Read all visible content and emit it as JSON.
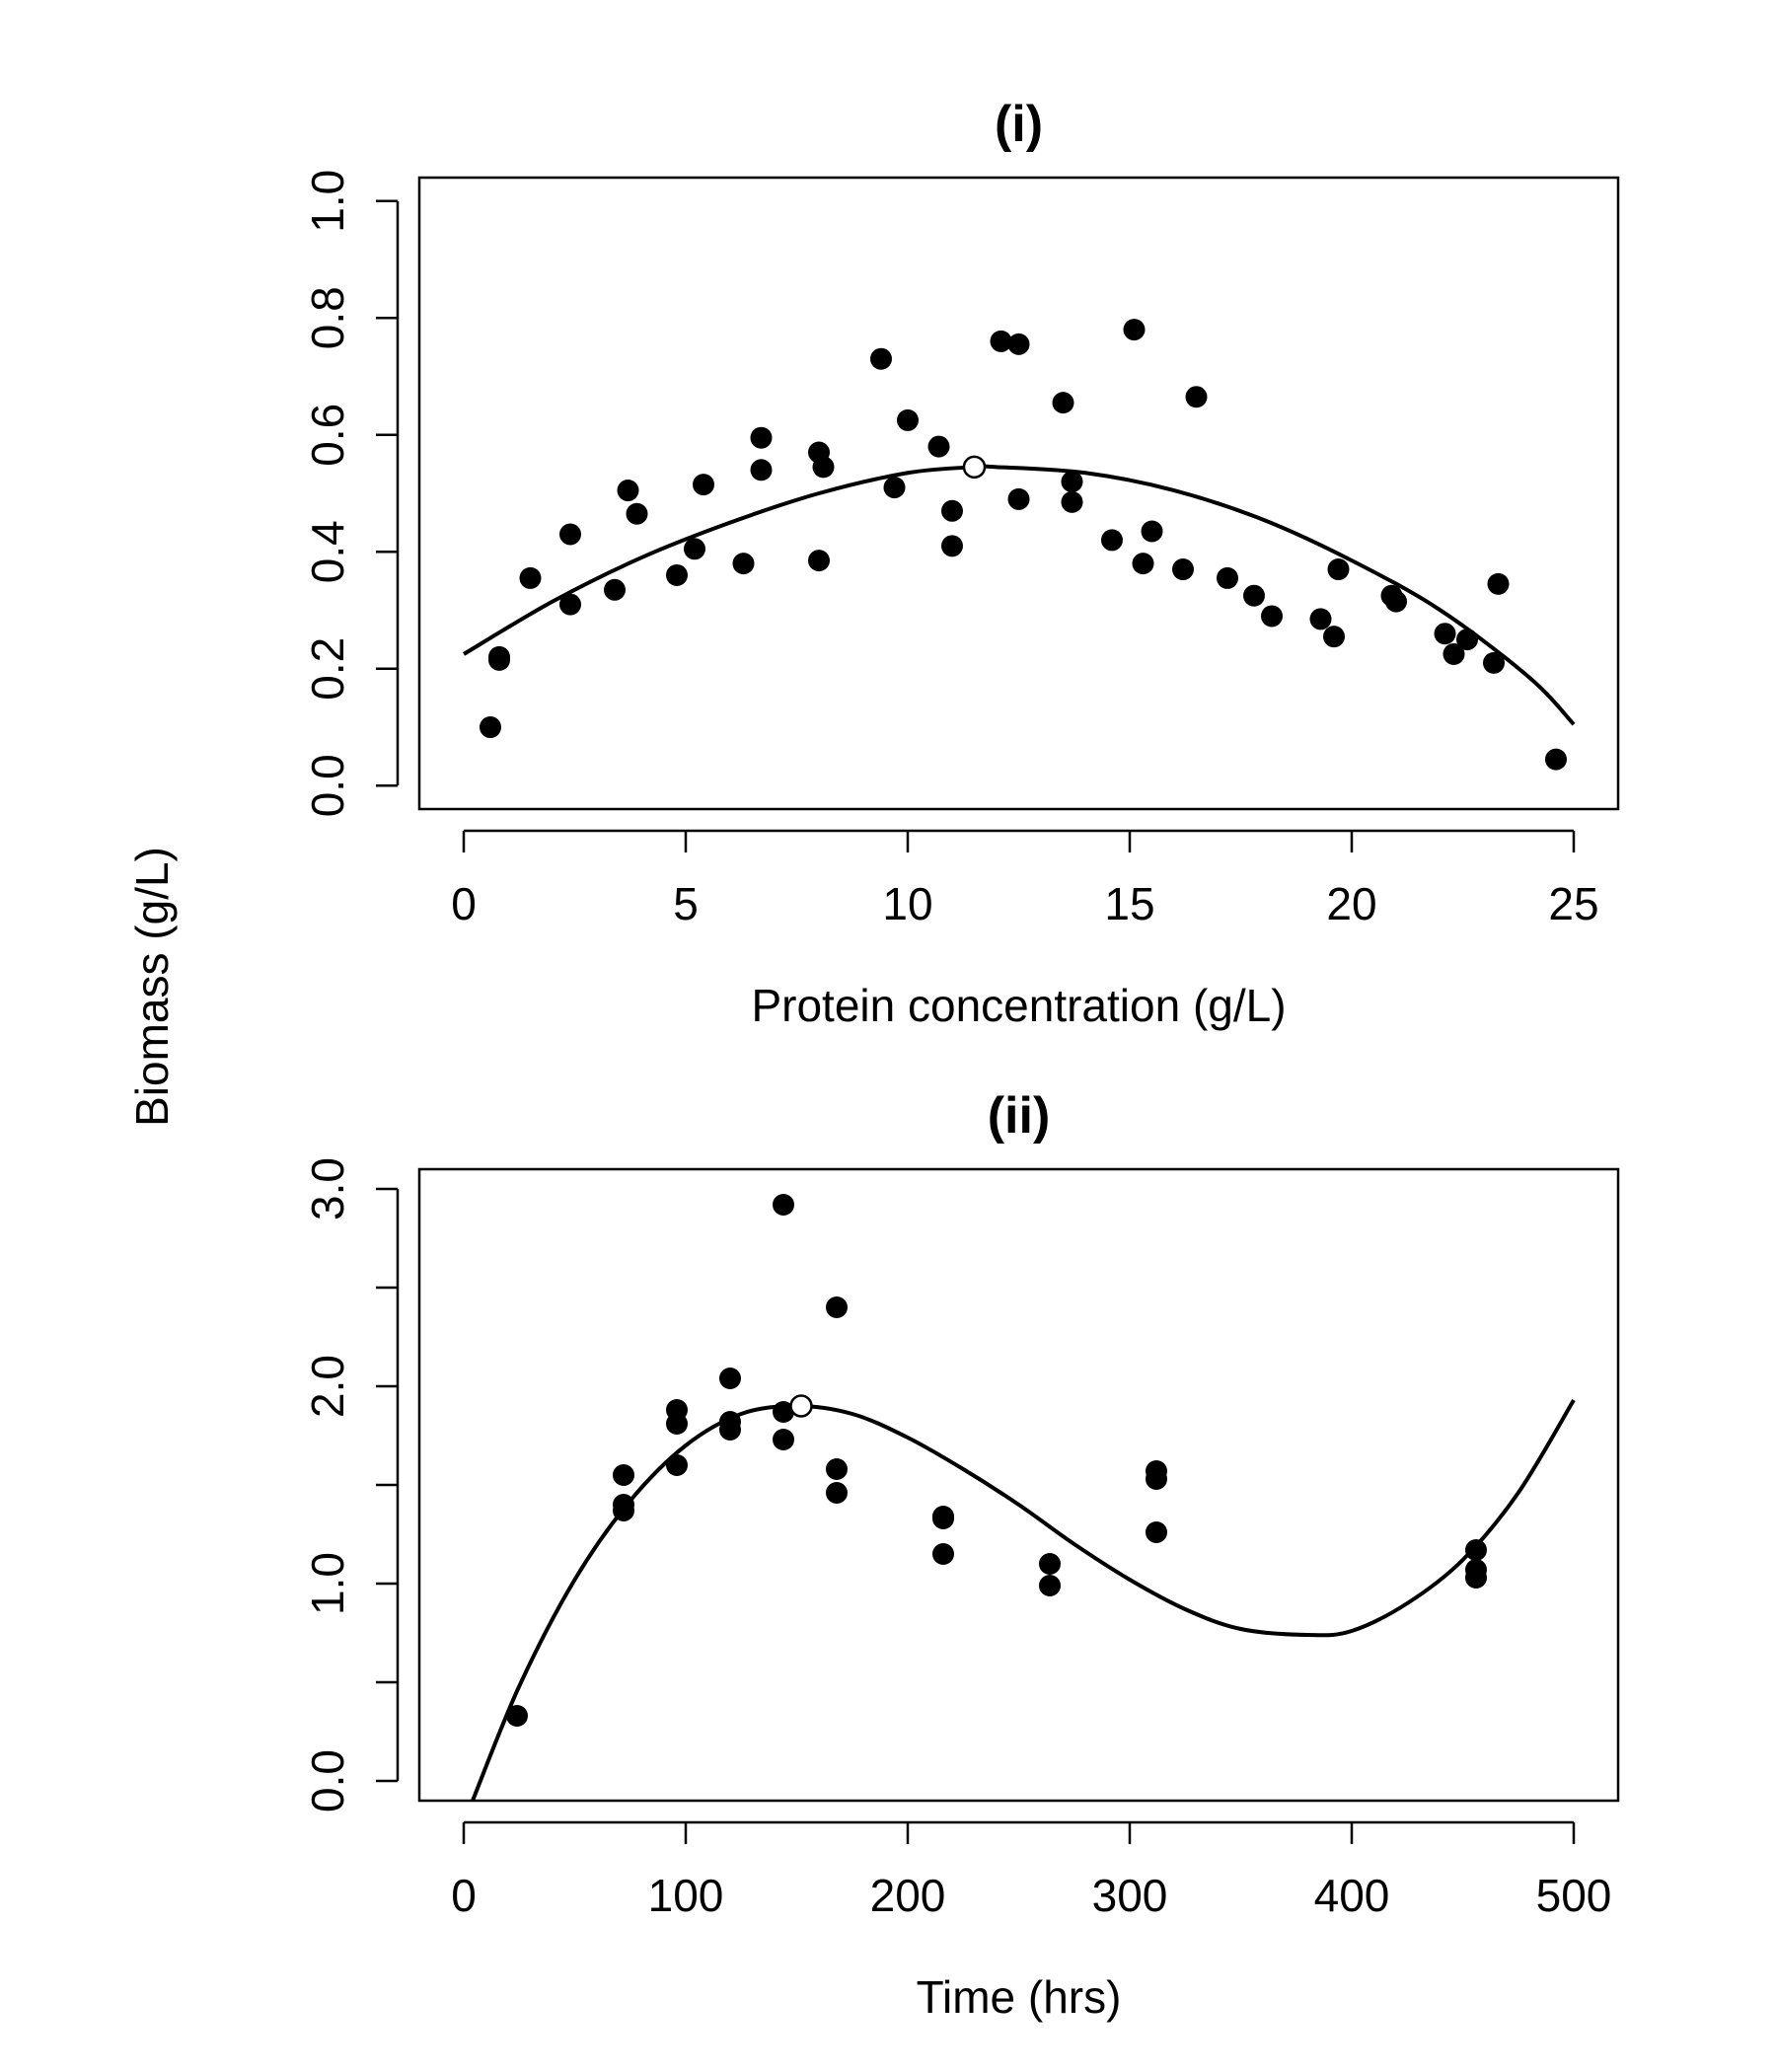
{
  "figure": {
    "shared_ylabel": "Biomass (g/L)"
  },
  "chart_data": [
    {
      "type": "scatter",
      "title": "(i)",
      "xlabel": "Protein concentration (g/L)",
      "ylabel": "Biomass (g/L)",
      "xlim": [
        -1,
        26
      ],
      "ylim": [
        -0.04,
        1.04
      ],
      "xticks": [
        0,
        5,
        10,
        15,
        20,
        25
      ],
      "xtick_labels": [
        "0",
        "5",
        "10",
        "15",
        "20",
        "25"
      ],
      "yticks": [
        0.0,
        0.2,
        0.4,
        0.6,
        0.8,
        1.0
      ],
      "ytick_labels": [
        "0.0",
        "0.2",
        "0.4",
        "0.6",
        "0.8",
        "1.0"
      ],
      "grid": false,
      "points": [
        [
          0.6,
          0.1
        ],
        [
          0.8,
          0.22
        ],
        [
          0.8,
          0.215
        ],
        [
          1.5,
          0.355
        ],
        [
          2.4,
          0.43
        ],
        [
          2.4,
          0.31
        ],
        [
          3.4,
          0.335
        ],
        [
          3.7,
          0.505
        ],
        [
          3.9,
          0.465
        ],
        [
          4.8,
          0.36
        ],
        [
          5.2,
          0.405
        ],
        [
          5.4,
          0.515
        ],
        [
          6.3,
          0.38
        ],
        [
          6.7,
          0.595
        ],
        [
          6.7,
          0.54
        ],
        [
          8.0,
          0.385
        ],
        [
          8.0,
          0.57
        ],
        [
          8.1,
          0.545
        ],
        [
          9.4,
          0.73
        ],
        [
          9.7,
          0.51
        ],
        [
          10.0,
          0.625
        ],
        [
          10.7,
          0.58
        ],
        [
          11.0,
          0.47
        ],
        [
          11.0,
          0.41
        ],
        [
          12.1,
          0.76
        ],
        [
          12.5,
          0.755
        ],
        [
          12.5,
          0.49
        ],
        [
          13.5,
          0.655
        ],
        [
          13.7,
          0.52
        ],
        [
          13.7,
          0.485
        ],
        [
          14.6,
          0.42
        ],
        [
          15.1,
          0.78
        ],
        [
          15.3,
          0.38
        ],
        [
          15.5,
          0.435
        ],
        [
          16.2,
          0.37
        ],
        [
          16.5,
          0.665
        ],
        [
          17.2,
          0.355
        ],
        [
          17.8,
          0.325
        ],
        [
          18.2,
          0.29
        ],
        [
          19.3,
          0.285
        ],
        [
          19.6,
          0.255
        ],
        [
          19.7,
          0.37
        ],
        [
          20.9,
          0.325
        ],
        [
          21.0,
          0.315
        ],
        [
          22.1,
          0.26
        ],
        [
          22.3,
          0.225
        ],
        [
          22.6,
          0.25
        ],
        [
          23.2,
          0.21
        ],
        [
          23.3,
          0.345
        ],
        [
          24.6,
          0.045
        ]
      ],
      "fit_curve": {
        "type": "quadratic",
        "x": [
          0,
          2,
          4,
          6,
          8,
          10,
          11.5,
          12,
          14,
          16,
          18,
          20,
          22,
          24,
          25
        ],
        "y": [
          0.225,
          0.315,
          0.39,
          0.45,
          0.5,
          0.535,
          0.545,
          0.545,
          0.535,
          0.505,
          0.455,
          0.385,
          0.3,
          0.185,
          0.105
        ]
      },
      "optimum_point": [
        11.5,
        0.545
      ]
    },
    {
      "type": "scatter",
      "title": "(ii)",
      "xlabel": "Time (hrs)",
      "ylabel": "Biomass (g/L)",
      "xlim": [
        -20,
        520
      ],
      "ylim": [
        -0.1,
        3.1
      ],
      "xticks": [
        0,
        100,
        200,
        300,
        400,
        500
      ],
      "xtick_labels": [
        "0",
        "100",
        "200",
        "300",
        "400",
        "500"
      ],
      "yticks": [
        0.0,
        0.5,
        1.0,
        1.5,
        2.0,
        2.5,
        3.0
      ],
      "ytick_labels": [
        "0.0",
        "",
        "1.0",
        "",
        "2.0",
        "",
        "3.0"
      ],
      "grid": false,
      "points": [
        [
          24,
          0.33
        ],
        [
          72,
          1.55
        ],
        [
          72,
          1.4
        ],
        [
          72,
          1.37
        ],
        [
          96,
          1.88
        ],
        [
          96,
          1.81
        ],
        [
          96,
          1.6
        ],
        [
          120,
          2.04
        ],
        [
          120,
          1.82
        ],
        [
          120,
          1.78
        ],
        [
          144,
          2.92
        ],
        [
          144,
          1.87
        ],
        [
          144,
          1.73
        ],
        [
          168,
          2.4
        ],
        [
          168,
          1.58
        ],
        [
          168,
          1.46
        ],
        [
          216,
          1.34
        ],
        [
          216,
          1.33
        ],
        [
          216,
          1.15
        ],
        [
          264,
          1.1
        ],
        [
          264,
          0.99
        ],
        [
          312,
          1.57
        ],
        [
          312,
          1.53
        ],
        [
          312,
          1.26
        ],
        [
          456,
          1.17
        ],
        [
          456,
          1.07
        ],
        [
          456,
          1.03
        ]
      ],
      "fit_curve": {
        "type": "cubic",
        "x": [
          4,
          25,
          50,
          75,
          100,
          125,
          150,
          175,
          200,
          225,
          250,
          275,
          300,
          325,
          350,
          380,
          400,
          425,
          450,
          475,
          500
        ],
        "y": [
          -0.1,
          0.48,
          1.02,
          1.42,
          1.7,
          1.86,
          1.9,
          1.86,
          1.74,
          1.58,
          1.4,
          1.2,
          1.02,
          0.87,
          0.77,
          0.74,
          0.76,
          0.9,
          1.12,
          1.46,
          1.93
        ]
      },
      "optimum_point": [
        152,
        1.9
      ]
    }
  ]
}
